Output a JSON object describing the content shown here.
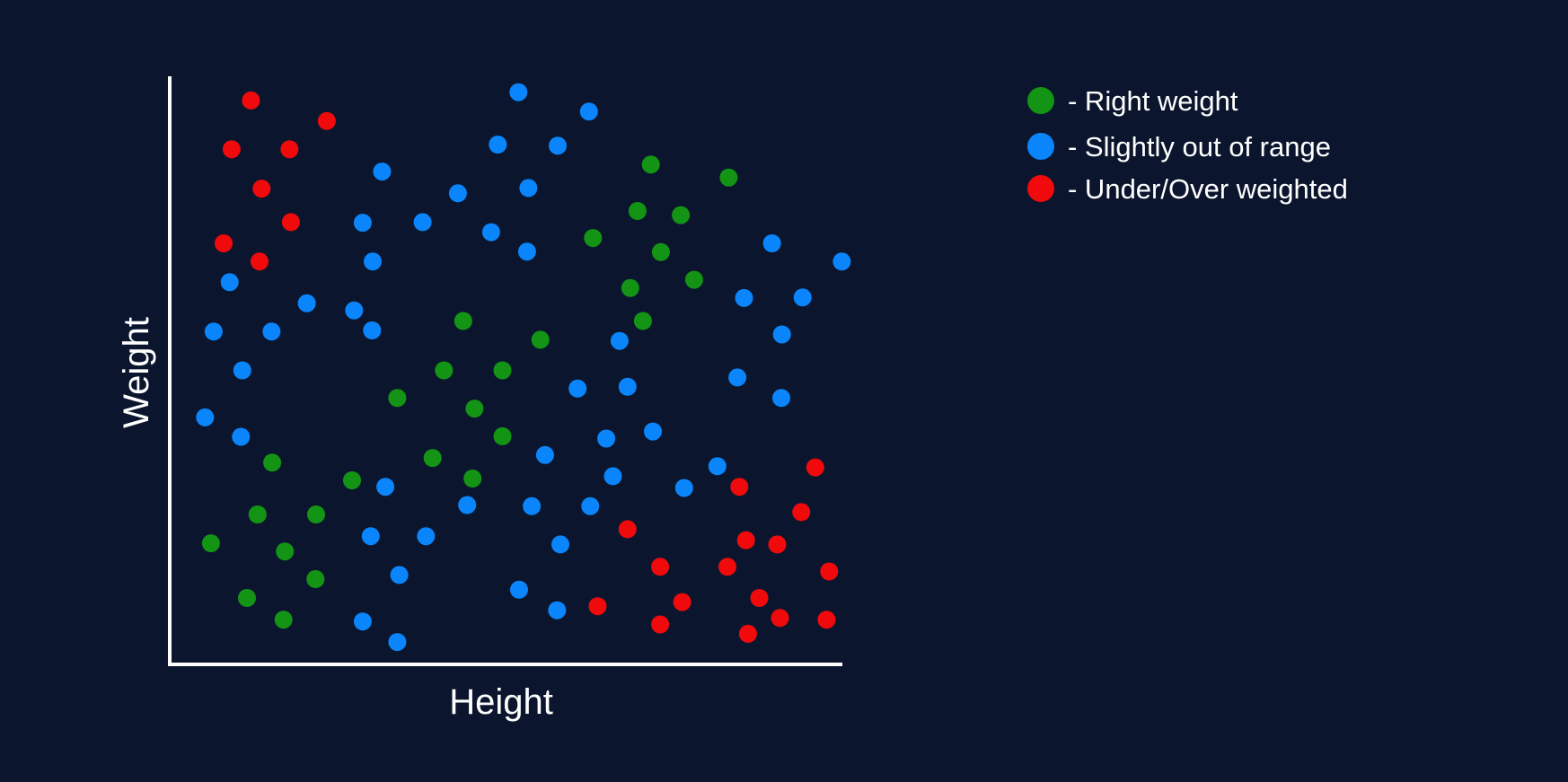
{
  "chart_data": {
    "type": "scatter",
    "xlabel": "Height",
    "ylabel": "Weight",
    "xlim": [
      0,
      100
    ],
    "ylim": [
      0,
      100
    ],
    "grid": false,
    "legend_position": "top-right",
    "series": [
      {
        "name": "- Right weight",
        "color": "#139414",
        "points": [
          [
            72.3,
            85.0
          ],
          [
            84.0,
            82.8
          ],
          [
            70.3,
            77.1
          ],
          [
            76.8,
            76.4
          ],
          [
            63.6,
            72.5
          ],
          [
            73.8,
            70.1
          ],
          [
            78.8,
            65.4
          ],
          [
            69.2,
            64.0
          ],
          [
            71.1,
            58.4
          ],
          [
            44.1,
            58.4
          ],
          [
            55.7,
            55.2
          ],
          [
            41.2,
            50.0
          ],
          [
            50.0,
            50.0
          ],
          [
            34.2,
            45.3
          ],
          [
            45.8,
            43.5
          ],
          [
            50.0,
            38.8
          ],
          [
            39.5,
            35.1
          ],
          [
            15.4,
            34.3
          ],
          [
            27.4,
            31.3
          ],
          [
            45.5,
            31.6
          ],
          [
            13.2,
            25.5
          ],
          [
            22.0,
            25.5
          ],
          [
            6.2,
            20.6
          ],
          [
            17.3,
            19.2
          ],
          [
            21.9,
            14.5
          ],
          [
            11.6,
            11.3
          ],
          [
            17.1,
            7.6
          ]
        ]
      },
      {
        "name": "- Slightly out of range",
        "color": "#0a85fc",
        "points": [
          [
            52.4,
            97.3
          ],
          [
            63.0,
            94.0
          ],
          [
            49.3,
            88.4
          ],
          [
            58.3,
            88.2
          ],
          [
            31.9,
            83.8
          ],
          [
            43.3,
            80.1
          ],
          [
            53.9,
            81.0
          ],
          [
            29.0,
            75.1
          ],
          [
            38.0,
            75.2
          ],
          [
            48.3,
            73.5
          ],
          [
            53.7,
            70.2
          ],
          [
            30.5,
            68.5
          ],
          [
            90.5,
            71.6
          ],
          [
            101.0,
            68.5
          ],
          [
            9.0,
            65.0
          ],
          [
            20.6,
            61.4
          ],
          [
            27.7,
            60.2
          ],
          [
            86.3,
            62.3
          ],
          [
            95.1,
            62.4
          ],
          [
            6.6,
            56.6
          ],
          [
            15.3,
            56.6
          ],
          [
            30.4,
            56.8
          ],
          [
            67.6,
            55.0
          ],
          [
            92.0,
            56.1
          ],
          [
            10.9,
            50.0
          ],
          [
            85.3,
            48.8
          ],
          [
            5.3,
            42.0
          ],
          [
            61.3,
            46.9
          ],
          [
            68.8,
            47.2
          ],
          [
            91.9,
            45.3
          ],
          [
            10.7,
            38.7
          ],
          [
            65.6,
            38.4
          ],
          [
            72.6,
            39.6
          ],
          [
            56.4,
            35.6
          ],
          [
            82.3,
            33.7
          ],
          [
            66.6,
            32.0
          ],
          [
            32.4,
            30.2
          ],
          [
            77.3,
            30.0
          ],
          [
            44.7,
            27.1
          ],
          [
            54.4,
            26.9
          ],
          [
            63.2,
            26.9
          ],
          [
            30.2,
            21.8
          ],
          [
            38.5,
            21.8
          ],
          [
            58.7,
            20.4
          ],
          [
            34.5,
            15.2
          ],
          [
            52.5,
            12.7
          ],
          [
            58.2,
            9.2
          ],
          [
            29.0,
            7.3
          ],
          [
            34.2,
            3.8
          ]
        ]
      },
      {
        "name": "- Under/Over weighted",
        "color": "#f00a0b",
        "points": [
          [
            12.2,
            95.9
          ],
          [
            23.6,
            92.4
          ],
          [
            9.3,
            87.6
          ],
          [
            18.0,
            87.6
          ],
          [
            13.8,
            80.9
          ],
          [
            18.2,
            75.2
          ],
          [
            8.1,
            71.6
          ],
          [
            13.5,
            68.5
          ],
          [
            97.0,
            33.5
          ],
          [
            85.6,
            30.2
          ],
          [
            68.8,
            23.0
          ],
          [
            94.9,
            25.9
          ],
          [
            86.6,
            21.1
          ],
          [
            91.3,
            20.4
          ],
          [
            73.7,
            16.6
          ],
          [
            83.8,
            16.6
          ],
          [
            99.1,
            15.8
          ],
          [
            88.6,
            11.3
          ],
          [
            64.3,
            9.9
          ],
          [
            77.0,
            10.6
          ],
          [
            91.7,
            7.9
          ],
          [
            73.7,
            6.8
          ],
          [
            98.7,
            7.6
          ],
          [
            86.9,
            5.2
          ]
        ]
      }
    ]
  }
}
